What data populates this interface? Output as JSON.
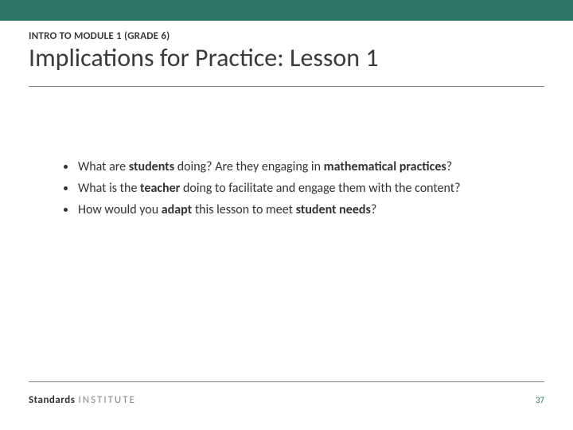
{
  "colors": {
    "top_band": "#2e7566",
    "rule": "#7f7f7f",
    "text": "#333333",
    "brand_light": "#8a8a8a",
    "pagenum": "#2e7566",
    "background": "#ffffff"
  },
  "header": {
    "kicker": "INTRO TO MODULE 1 (GRADE 6)",
    "title": "Implications for Practice: Lesson 1"
  },
  "bullets": [
    {
      "segments": [
        {
          "t": "What are ",
          "b": false
        },
        {
          "t": "students",
          "b": true
        },
        {
          "t": " doing? Are they engaging in ",
          "b": false
        },
        {
          "t": "mathematical practices",
          "b": true
        },
        {
          "t": "?",
          "b": false
        }
      ]
    },
    {
      "segments": [
        {
          "t": "What is the ",
          "b": false
        },
        {
          "t": "teacher",
          "b": true
        },
        {
          "t": " doing to facilitate and engage them with the content?",
          "b": false
        }
      ]
    },
    {
      "segments": [
        {
          "t": "How would you ",
          "b": false
        },
        {
          "t": "adapt",
          "b": true
        },
        {
          "t": " this lesson to meet ",
          "b": false
        },
        {
          "t": "student needs",
          "b": true
        },
        {
          "t": "?",
          "b": false
        }
      ]
    }
  ],
  "footer": {
    "brand_strong": "Standards",
    "brand_light": "INSTITUTE",
    "page_number": "37"
  }
}
